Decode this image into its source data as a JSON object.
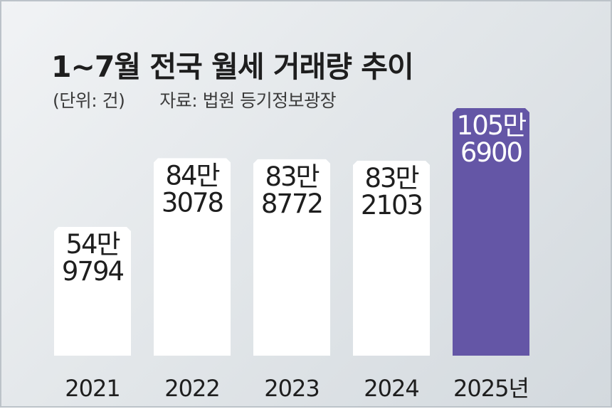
{
  "header": {
    "title": "1~7월 전국 월세 거래량 추이",
    "unit": "(단위: 건)",
    "source": "자료: 법원 등기정보광장"
  },
  "colors": {
    "normal_bar": "#ffffff",
    "highlight_bar": "#6456a6",
    "normal_text": "#1e1e1e",
    "highlight_text": "#ffffff"
  },
  "chart_data": {
    "type": "bar",
    "title": "1~7월 전국 월세 거래량 추이",
    "unit": "건",
    "categories": [
      "2021",
      "2022",
      "2023",
      "2024",
      "2025년"
    ],
    "values": [
      549794,
      843078,
      838772,
      832103,
      1056900
    ],
    "data_labels": [
      [
        "54만",
        "9794"
      ],
      [
        "84만",
        "3078"
      ],
      [
        "83만",
        "8772"
      ],
      [
        "83만",
        "2103"
      ],
      [
        "105만",
        "6900"
      ]
    ],
    "highlight_index": 4,
    "grid": false
  }
}
